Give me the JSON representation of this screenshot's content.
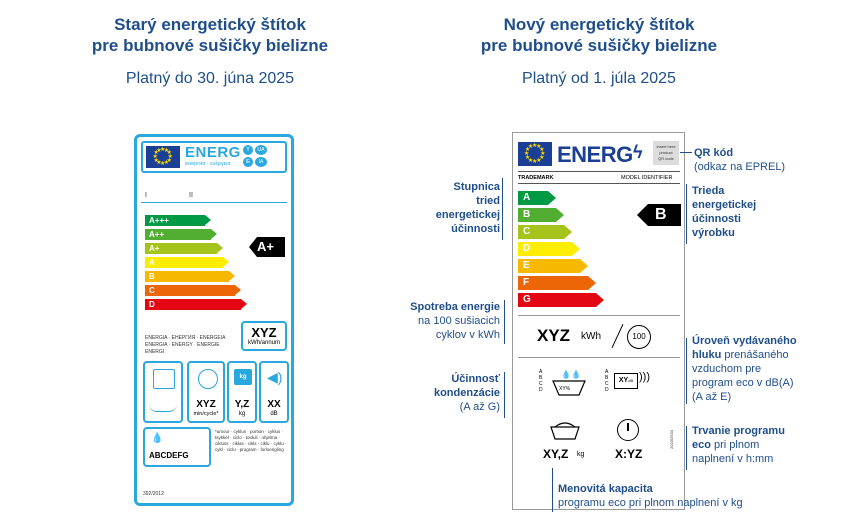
{
  "old_section": {
    "title_line1": "Starý energetický štítok",
    "title_line2": "pre bubnové sušičky bielizne",
    "validity": "Platný do 30. júna 2025"
  },
  "new_section": {
    "title_line1": "Nový energetický štítok",
    "title_line2": "pre bubnové sušičky bielizne",
    "validity": "Platný od 1. júla 2025"
  },
  "old_label": {
    "energy_text": "ENERG",
    "energy_sub": "енергия · ενέργεια",
    "lang_badges": [
      "Y",
      "IJA",
      "IE",
      "IA"
    ],
    "roman": [
      "I",
      "II"
    ],
    "classes": [
      {
        "label": "A+++",
        "color": "#009a44"
      },
      {
        "label": "A++",
        "color": "#52ae32"
      },
      {
        "label": "A+",
        "color": "#a4c41b"
      },
      {
        "label": "A",
        "color": "#ffed00"
      },
      {
        "label": "B",
        "color": "#f7b900"
      },
      {
        "label": "C",
        "color": "#ec6608"
      },
      {
        "label": "D",
        "color": "#e30613"
      }
    ],
    "rating": "A+",
    "energy_words": [
      "ENERGIA · ЕНЕРГИЯ · ENERGEIA",
      "ENERGIA · ENERGY · ENERGIE",
      "ENERGI"
    ],
    "consumption_value": "XYZ",
    "consumption_unit": "kWh/annum",
    "time_value": "XYZ",
    "time_unit": "min/cycle*",
    "kg_icon": "kg",
    "capacity_value": "Y,Z",
    "capacity_unit": "kg",
    "noise_value": "XX",
    "noise_unit": "dB",
    "condensation_classes": "ABCDEFG",
    "footnote": "*umour · cyklus · portion · cyklus · tsykkel · ciclo · toiduli · ohjelma · cikluss · ciklas · cikls · ciklu · cyklu · cykl · ciclu · program · forloengling",
    "regulation": "392/2012"
  },
  "new_label": {
    "energy_text": "ENERG",
    "qr_text": [
      "Insert here",
      "product",
      "QR code"
    ],
    "trademark": "TRADEMARK",
    "model_identifier": "MODEL IDENTIFIER",
    "classes": [
      {
        "label": "A",
        "color": "#009a44"
      },
      {
        "label": "B",
        "color": "#52ae32"
      },
      {
        "label": "C",
        "color": "#a4c41b"
      },
      {
        "label": "D",
        "color": "#ffed00"
      },
      {
        "label": "E",
        "color": "#f7b900"
      },
      {
        "label": "F",
        "color": "#ec6608"
      },
      {
        "label": "G",
        "color": "#e30613"
      }
    ],
    "rating": "B",
    "consumption_value": "XYZ",
    "consumption_unit": "kWh",
    "cycles": "100",
    "condensation_letters": [
      "A",
      "B",
      "C",
      "D"
    ],
    "condensation_xy": "XY%",
    "noise_letters": [
      "A",
      "B",
      "C",
      "D"
    ],
    "noise_value": "XY",
    "noise_unit": "dB",
    "capacity_value": "XY,Z",
    "capacity_unit": "kg",
    "duration_value": "X:YZ",
    "regulation": "2023/2534"
  },
  "annotations": {
    "qr_title": "QR kód",
    "qr_desc": "(odkaz na EPREL)",
    "scale": [
      "Stupnica",
      "tried",
      "energetickej",
      "účinnosti"
    ],
    "class": [
      "Trieda",
      "energetickej",
      "účinnosti",
      "výrobku"
    ],
    "consumption_title": "Spotreba energie",
    "consumption_desc": [
      "na 100 sušiacich",
      "cyklov v kWh"
    ],
    "noise_title": [
      "Úroveň vydávaného",
      "hluku"
    ],
    "noise_desc_inline": "prenášaného",
    "noise_desc": [
      "vzduchom pre",
      "program eco v dB(A)",
      "(A až E)"
    ],
    "condensation_title": [
      "Účinnosť",
      "kondenzácie"
    ],
    "condensation_desc": "(A až G)",
    "duration_title": [
      "Trvanie programu",
      "eco"
    ],
    "duration_desc_inline": "pri plnom",
    "duration_desc": "naplnení v h:mm",
    "capacity_title": "Menovitá kapacita",
    "capacity_desc": "programu eco pri plnom naplnení v kg"
  }
}
